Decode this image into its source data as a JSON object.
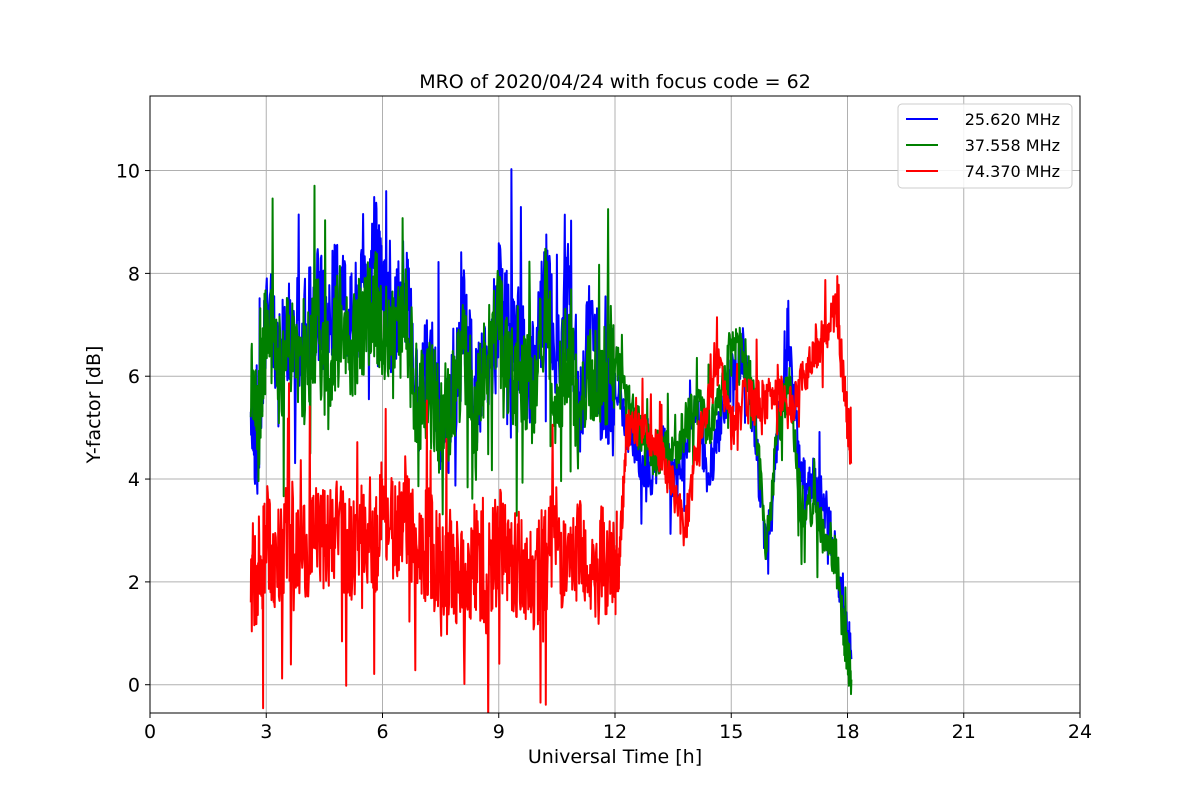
{
  "chart_data": {
    "type": "line",
    "title": "MRO of 2020/04/24 with focus code = 62",
    "xlabel": "Universal Time [h]",
    "ylabel": "Y-factor [dB]",
    "xlim": [
      0,
      24
    ],
    "ylim": [
      -0.55,
      11.45
    ],
    "xticks": [
      0,
      3,
      6,
      9,
      12,
      15,
      18,
      21,
      24
    ],
    "yticks": [
      0,
      2,
      4,
      6,
      8,
      10
    ],
    "grid": true,
    "legend_position": "top-right",
    "series": [
      {
        "name": "25.620 MHz",
        "color": "#0000ff",
        "x": [
          2.6,
          2.8,
          3.0,
          3.3,
          3.6,
          4.0,
          4.3,
          4.6,
          4.9,
          5.2,
          5.5,
          5.8,
          6.0,
          6.3,
          6.6,
          6.9,
          7.2,
          7.5,
          7.8,
          8.1,
          8.4,
          8.7,
          9.0,
          9.3,
          9.6,
          9.9,
          10.2,
          10.5,
          10.8,
          11.1,
          11.4,
          11.7,
          12.0,
          12.3,
          12.6,
          12.9,
          13.2,
          13.5,
          13.8,
          14.1,
          14.4,
          14.7,
          15.0,
          15.3,
          15.6,
          15.9,
          16.2,
          16.5,
          16.8,
          17.1,
          17.4,
          17.7,
          17.9,
          18.1
        ],
        "values": [
          5.5,
          4.5,
          7.5,
          6.0,
          7.0,
          6.8,
          7.5,
          7.0,
          8.0,
          7.0,
          7.5,
          8.5,
          7.5,
          7.0,
          7.8,
          5.5,
          6.5,
          5.0,
          5.5,
          7.0,
          5.5,
          6.0,
          7.5,
          7.0,
          6.5,
          6.0,
          8.0,
          6.5,
          7.5,
          5.5,
          7.0,
          5.5,
          6.0,
          5.0,
          4.5,
          4.0,
          4.8,
          4.0,
          4.5,
          5.5,
          4.0,
          5.0,
          6.0,
          6.5,
          5.0,
          2.5,
          5.0,
          6.5,
          4.0,
          4.0,
          3.5,
          2.5,
          1.5,
          0.5
        ]
      },
      {
        "name": "37.558 MHz",
        "color": "#008000",
        "x": [
          2.6,
          2.8,
          3.0,
          3.3,
          3.6,
          4.0,
          4.3,
          4.6,
          4.9,
          5.2,
          5.5,
          5.8,
          6.0,
          6.3,
          6.6,
          6.9,
          7.2,
          7.5,
          7.8,
          8.1,
          8.4,
          8.7,
          9.0,
          9.3,
          9.6,
          9.9,
          10.2,
          10.5,
          10.8,
          11.1,
          11.4,
          11.7,
          12.0,
          12.3,
          12.6,
          12.9,
          13.2,
          13.5,
          13.8,
          14.1,
          14.4,
          14.7,
          15.0,
          15.3,
          15.6,
          15.9,
          16.2,
          16.5,
          16.8,
          17.1,
          17.4,
          17.7,
          17.9,
          18.1
        ],
        "values": [
          5.5,
          5.0,
          7.0,
          6.0,
          6.8,
          6.0,
          7.0,
          6.0,
          7.2,
          6.5,
          7.0,
          7.5,
          7.0,
          6.5,
          7.0,
          5.5,
          6.0,
          5.0,
          5.5,
          6.5,
          5.0,
          6.5,
          7.0,
          6.0,
          6.0,
          5.5,
          7.5,
          5.5,
          6.5,
          5.0,
          6.0,
          6.0,
          6.5,
          5.5,
          5.0,
          4.5,
          4.5,
          4.5,
          5.0,
          5.5,
          5.0,
          5.5,
          6.5,
          6.5,
          5.5,
          2.5,
          5.0,
          5.8,
          3.5,
          3.5,
          3.0,
          2.5,
          1.0,
          0.1
        ]
      },
      {
        "name": "74.370 MHz",
        "color": "#ff0000",
        "x": [
          2.6,
          2.8,
          3.0,
          3.3,
          3.6,
          4.0,
          4.3,
          4.6,
          4.9,
          5.2,
          5.5,
          5.8,
          6.0,
          6.3,
          6.6,
          6.9,
          7.2,
          7.5,
          7.8,
          8.1,
          8.4,
          8.7,
          9.0,
          9.3,
          9.6,
          9.9,
          10.2,
          10.5,
          10.8,
          11.1,
          11.4,
          11.7,
          12.0,
          12.1,
          12.3,
          12.6,
          12.9,
          13.2,
          13.5,
          13.8,
          14.1,
          14.4,
          14.7,
          15.0,
          15.3,
          15.6,
          15.9,
          16.2,
          16.5,
          16.8,
          17.1,
          17.4,
          17.7,
          17.9,
          18.1
        ],
        "values": [
          2.0,
          2.3,
          2.8,
          2.5,
          3.0,
          2.5,
          3.2,
          2.8,
          3.0,
          2.5,
          3.2,
          2.8,
          3.3,
          3.0,
          3.5,
          2.5,
          2.8,
          2.2,
          2.5,
          1.8,
          2.5,
          2.0,
          2.8,
          2.2,
          2.5,
          2.0,
          2.5,
          2.8,
          2.0,
          3.0,
          2.0,
          2.5,
          2.3,
          2.2,
          5.0,
          5.2,
          4.8,
          4.5,
          3.8,
          3.0,
          4.5,
          5.5,
          6.2,
          5.0,
          5.5,
          5.5,
          5.5,
          5.8,
          5.3,
          5.8,
          6.5,
          6.8,
          7.2,
          6.0,
          4.3
        ]
      }
    ]
  }
}
